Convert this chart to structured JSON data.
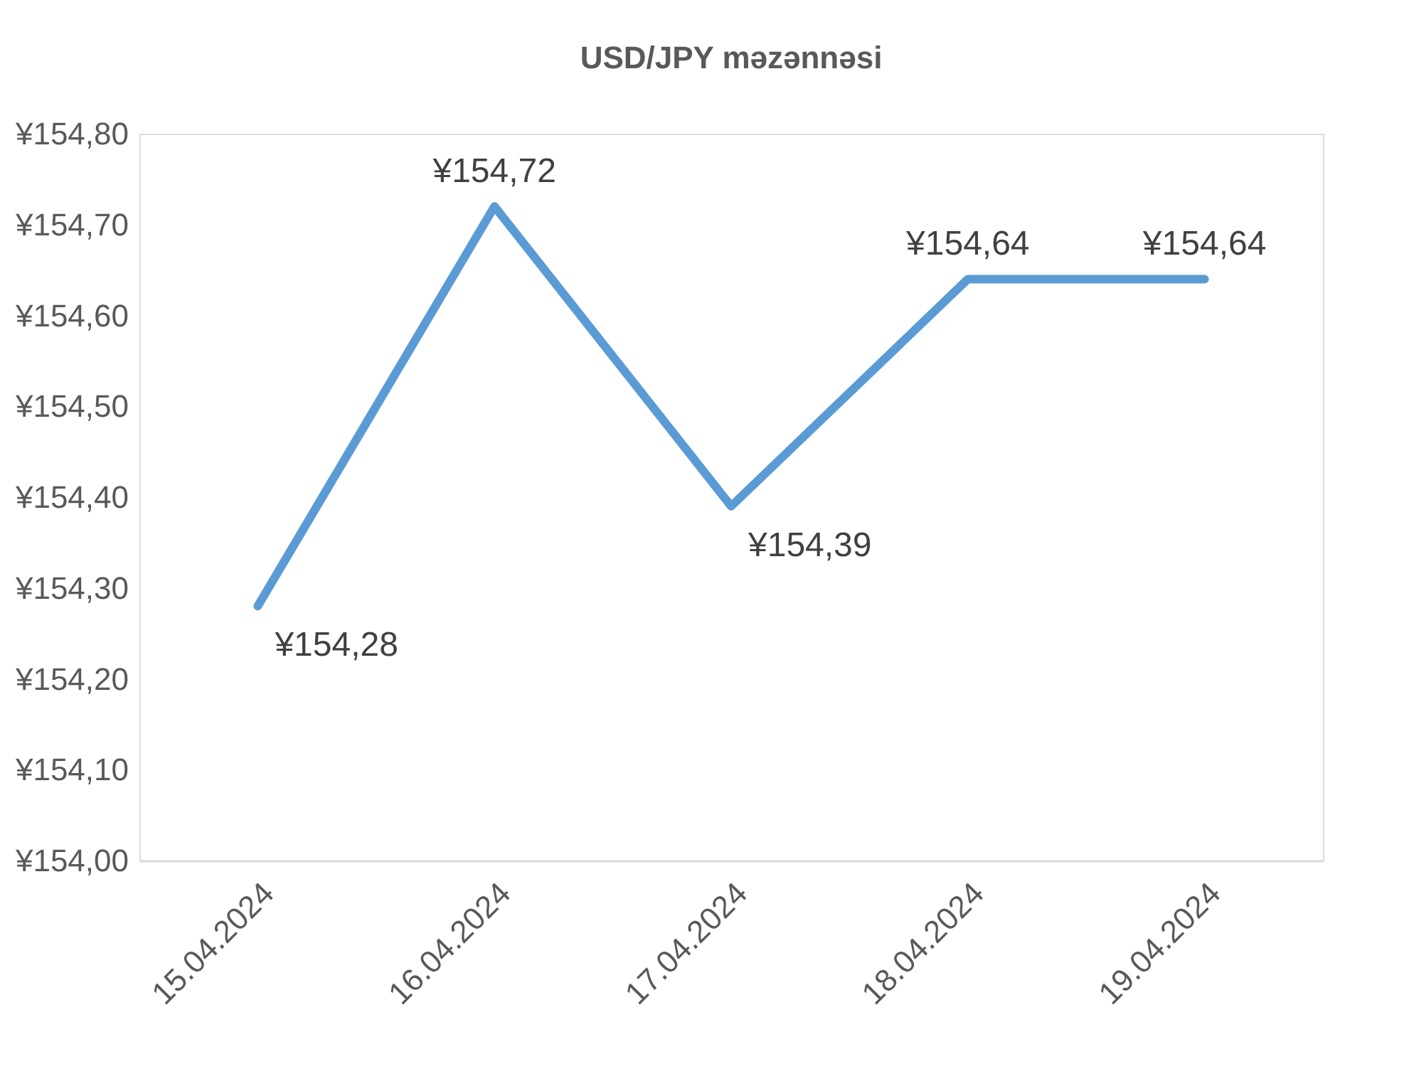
{
  "chart_data": {
    "type": "line",
    "title": "USD/JPY  məzənnəsi",
    "categories": [
      "15.04.2024",
      "16.04.2024",
      "17.04.2024",
      "18.04.2024",
      "19.04.2024"
    ],
    "series": [
      {
        "color": "#5b9bd5",
        "values": [
          154.28,
          154.72,
          154.39,
          154.64,
          154.64
        ],
        "value_labels": [
          "¥154,28",
          "¥154,72",
          "¥154,39",
          "¥154,64",
          "¥154,64"
        ]
      }
    ],
    "ylim": [
      154.0,
      154.8
    ],
    "yticks": [
      {
        "value": 154.0,
        "label": "¥154,00"
      },
      {
        "value": 154.1,
        "label": "¥154,10"
      },
      {
        "value": 154.2,
        "label": "¥154,20"
      },
      {
        "value": 154.3,
        "label": "¥154,30"
      },
      {
        "value": 154.4,
        "label": "¥154,40"
      },
      {
        "value": 154.5,
        "label": "¥154,50"
      },
      {
        "value": 154.6,
        "label": "¥154,60"
      },
      {
        "value": 154.7,
        "label": "¥154,70"
      },
      {
        "value": 154.8,
        "label": "¥154,80"
      }
    ],
    "marker": "none",
    "line_style": "solid"
  }
}
